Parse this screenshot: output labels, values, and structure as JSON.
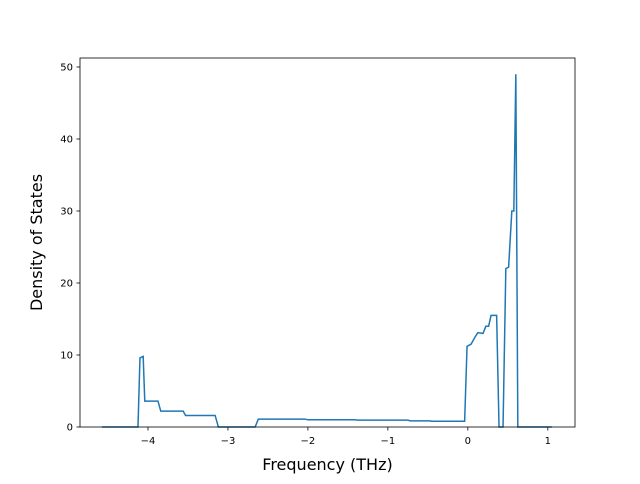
{
  "chart_data": {
    "type": "line",
    "xlabel": "Frequency (THz)",
    "ylabel": "Density of States",
    "series": [
      {
        "color": "#1f77b4",
        "x": [
          -4.575,
          -4.125,
          -4.1,
          -4.06,
          -4.04,
          -3.875,
          -3.84,
          -3.56,
          -3.53,
          -3.16,
          -3.12,
          -2.66,
          -2.62,
          -2.04,
          -2.0,
          -1.41,
          -1.38,
          -0.75,
          -0.72,
          -0.475,
          -0.45,
          -0.04,
          -0.01,
          0.04,
          0.09,
          0.125,
          0.19,
          0.225,
          0.26,
          0.29,
          0.36,
          0.39,
          0.44,
          0.475,
          0.51,
          0.55,
          0.575,
          0.6,
          0.625,
          1.05
        ],
        "values": [
          0,
          0,
          9.6,
          9.8,
          3.6,
          3.6,
          2.2,
          2.2,
          1.6,
          1.6,
          0,
          0,
          1.1,
          1.1,
          1.0,
          1.0,
          0.95,
          0.95,
          0.85,
          0.85,
          0.8,
          0.8,
          11.2,
          11.5,
          12.5,
          13.1,
          13.0,
          14.0,
          14.0,
          15.5,
          15.5,
          0,
          0,
          22.0,
          22.2,
          30.0,
          30.0,
          49.0,
          0,
          0
        ]
      }
    ],
    "xlim": [
      -4.85,
      1.34
    ],
    "ylim": [
      0,
      51.25
    ],
    "xticks": [
      {
        "value": -4,
        "label": "−4"
      },
      {
        "value": -3,
        "label": "−3"
      },
      {
        "value": -2,
        "label": "−2"
      },
      {
        "value": -1,
        "label": "−1"
      },
      0,
      1
    ],
    "yticks": [
      0,
      10,
      20,
      30,
      40,
      50
    ]
  }
}
